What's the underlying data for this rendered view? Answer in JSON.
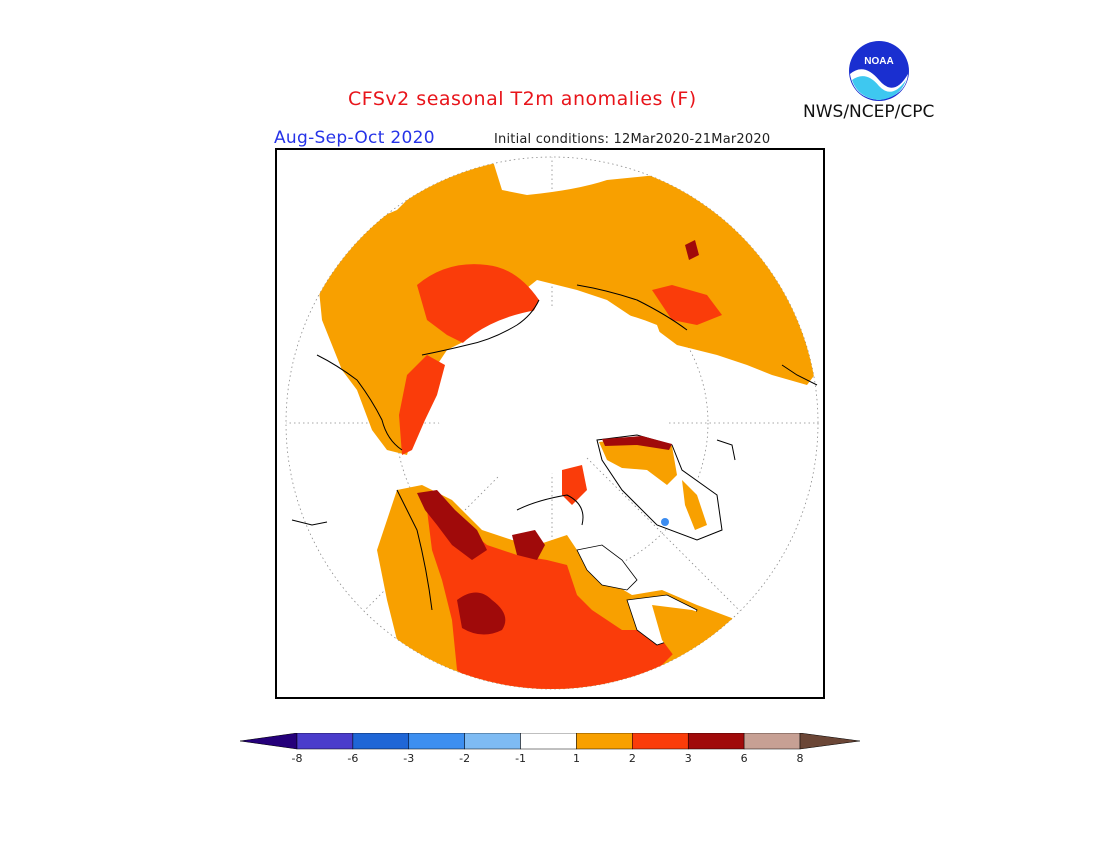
{
  "header": {
    "title": "CFSv2 seasonal T2m anomalies (F)",
    "season": "Aug-Sep-Oct 2020",
    "initial_conditions": "Initial conditions: 12Mar2020-21Mar2020",
    "agency": "NWS/NCEP/CPC",
    "logo_text": "NOAA"
  },
  "colors": {
    "title": "#e8141a",
    "season": "#2633e8",
    "land_outline": "#000000",
    "graticule": "#8a8a8a",
    "anom_1_2": "#f8a000",
    "anom_2_3": "#fa3c0a",
    "anom_3_6": "#a00a0a",
    "anom_neg": "#3b8cf0"
  },
  "colorbar": {
    "labels": [
      "-8",
      "-6",
      "-3",
      "-2",
      "-1",
      "1",
      "2",
      "3",
      "6",
      "8"
    ],
    "colors": [
      "#25007a",
      "#4a3ccb",
      "#1f66d6",
      "#3d8ff0",
      "#7ebbf3",
      "#ffffff",
      "#f8a000",
      "#fa3c0a",
      "#a00a0a",
      "#c7a094",
      "#6b4636"
    ]
  }
}
